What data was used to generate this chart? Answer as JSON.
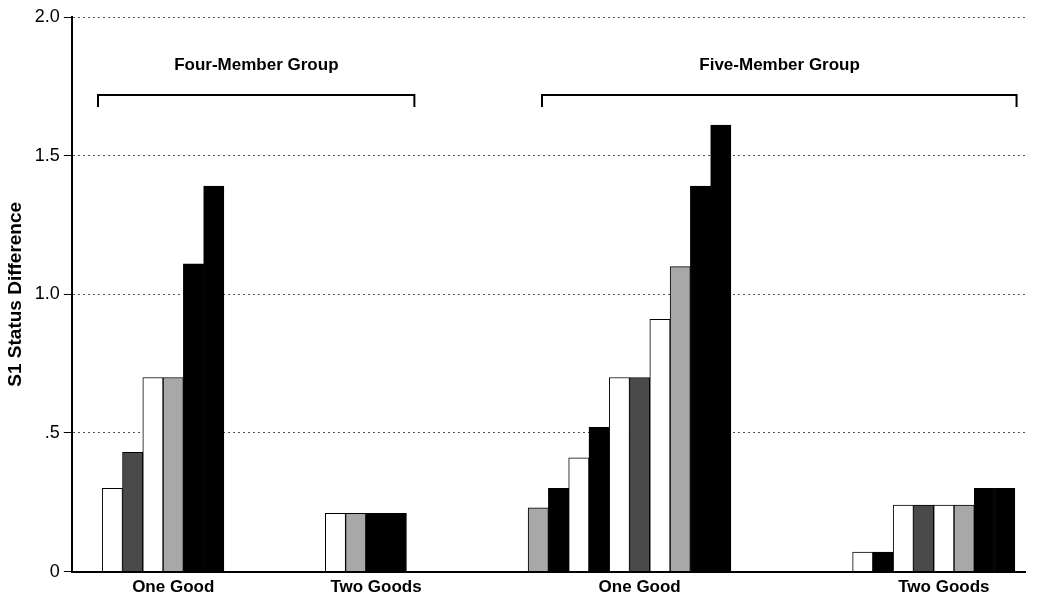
{
  "chart_data": {
    "type": "bar",
    "ylabel": "S1 Status Difference",
    "categories": [
      null,
      null,
      null,
      null,
      null,
      "One Good",
      null,
      null,
      null,
      null,
      null,
      null,
      null,
      null,
      null,
      "Two Goods",
      null,
      null,
      null,
      null,
      null,
      null,
      null,
      null,
      null,
      null,
      null,
      null,
      "One Good",
      null,
      null,
      null,
      null,
      null,
      null,
      null,
      null,
      null,
      null,
      null,
      null,
      null,
      null,
      "Two Goods",
      null,
      null,
      null,
      null
    ],
    "values": [
      null,
      null,
      0.3,
      0.43,
      0.7,
      0.7,
      1.11,
      1.39,
      null,
      null,
      null,
      null,
      null,
      0.21,
      0.21,
      0.21,
      0.21,
      null,
      null,
      null,
      null,
      null,
      null,
      0.23,
      0.3,
      0.41,
      0.52,
      0.7,
      0.7,
      0.91,
      1.1,
      1.39,
      1.61,
      null,
      null,
      null,
      null,
      null,
      null,
      0.07,
      0.07,
      0.24,
      0.24,
      0.24,
      0.24,
      0.3,
      0.3,
      null
    ],
    "colors": [
      null,
      null,
      "#ffffff",
      "#4a4a4a",
      "#ffffff",
      "#a8a8a8",
      "#000000",
      "#000000",
      null,
      null,
      null,
      null,
      null,
      "#ffffff",
      "#a8a8a8",
      "#000000",
      "#000000",
      null,
      null,
      null,
      null,
      null,
      null,
      "#a8a8a8",
      "#000000",
      "#ffffff",
      "#000000",
      "#ffffff",
      "#4a4a4a",
      "#ffffff",
      "#a8a8a8",
      "#000000",
      "#000000",
      null,
      null,
      null,
      null,
      null,
      null,
      "#ffffff",
      "#000000",
      "#ffffff",
      "#4a4a4a",
      "#ffffff",
      "#a8a8a8",
      "#000000",
      "#000000",
      null
    ],
    "ylim": [
      0,
      2
    ],
    "yticks": [
      0,
      {
        "value": 0.5,
        "label": ".5"
      },
      {
        "value": 1,
        "label": "1.0"
      },
      {
        "value": 1.5,
        "label": "1.5"
      },
      {
        "value": 2,
        "label": "2.0"
      }
    ],
    "grid": "y",
    "annotations": [
      "Four-Member Group",
      "Five-Member Group"
    ]
  }
}
